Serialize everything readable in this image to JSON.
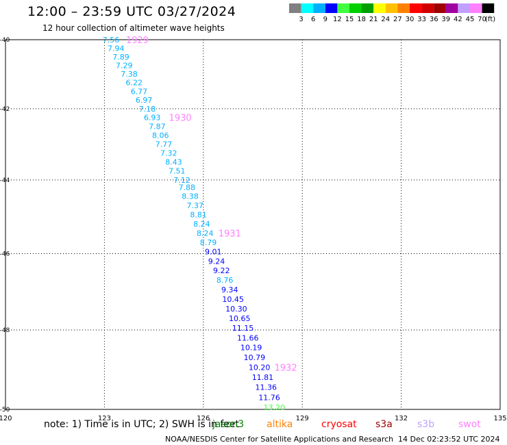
{
  "header": {
    "title": "12:00 – 23:59 UTC 03/27/2024",
    "subtitle": "12 hour collection of altimeter wave heights"
  },
  "legend": {
    "unit": "(ft)",
    "colors": [
      "#808080",
      "#00ffff",
      "#00b0ff",
      "#0000ff",
      "#40ff40",
      "#00d000",
      "#00a000",
      "#ffff00",
      "#ffc000",
      "#ff8000",
      "#ff0000",
      "#d00000",
      "#a00000",
      "#a000a0",
      "#c0a0ff",
      "#ff80ff",
      "#000000"
    ],
    "labels": [
      "3",
      "6",
      "9",
      "12",
      "15",
      "18",
      "21",
      "24",
      "27",
      "30",
      "33",
      "36",
      "39",
      "42",
      "45",
      "70"
    ]
  },
  "map": {
    "lat_ticks": [
      "-40",
      "-42",
      "-44",
      "-46",
      "-48",
      "-50"
    ],
    "lon_ticks": [
      "120",
      "123",
      "126",
      "129",
      "132",
      "135"
    ],
    "track": {
      "points": [
        {
          "lat": -40.0,
          "lon": 123.2,
          "swh": "7.56"
        },
        {
          "lat": -40.25,
          "lon": 123.35,
          "swh": "7.94"
        },
        {
          "lat": -40.5,
          "lon": 123.5,
          "swh": "7.89"
        },
        {
          "lat": -40.75,
          "lon": 123.6,
          "swh": "7.29"
        },
        {
          "lat": -41.0,
          "lon": 123.75,
          "swh": "7.38"
        },
        {
          "lat": -41.25,
          "lon": 123.9,
          "swh": "6.22"
        },
        {
          "lat": -41.5,
          "lon": 124.05,
          "swh": "6.77"
        },
        {
          "lat": -41.75,
          "lon": 124.2,
          "swh": "6.97"
        },
        {
          "lat": -42.0,
          "lon": 124.3,
          "swh": "7.18"
        },
        {
          "lat": -42.25,
          "lon": 124.45,
          "swh": "6.93"
        },
        {
          "lat": -42.5,
          "lon": 124.6,
          "swh": "7.87"
        },
        {
          "lat": -42.75,
          "lon": 124.7,
          "swh": "8.06"
        },
        {
          "lat": -43.0,
          "lon": 124.8,
          "swh": "7.77"
        },
        {
          "lat": -43.25,
          "lon": 124.95,
          "swh": "7.32"
        },
        {
          "lat": -43.5,
          "lon": 125.1,
          "swh": "8.43"
        },
        {
          "lat": -43.75,
          "lon": 125.2,
          "swh": "7.51"
        },
        {
          "lat": -44.0,
          "lon": 125.35,
          "swh": "7.12"
        },
        {
          "lat": -44.2,
          "lon": 125.5,
          "swh": "7.88"
        },
        {
          "lat": -44.45,
          "lon": 125.6,
          "swh": "8.38"
        },
        {
          "lat": -44.7,
          "lon": 125.75,
          "swh": "7.37"
        },
        {
          "lat": -44.95,
          "lon": 125.85,
          "swh": "8.81"
        },
        {
          "lat": -45.2,
          "lon": 125.95,
          "swh": "8.24"
        },
        {
          "lat": -45.45,
          "lon": 126.05,
          "swh": "8.24"
        },
        {
          "lat": -45.7,
          "lon": 126.15,
          "swh": "8.79"
        },
        {
          "lat": -45.95,
          "lon": 126.3,
          "swh": "9.01"
        },
        {
          "lat": -46.2,
          "lon": 126.4,
          "swh": "9.24"
        },
        {
          "lat": -46.45,
          "lon": 126.55,
          "swh": "9.22"
        },
        {
          "lat": -46.7,
          "lon": 126.65,
          "swh": "8.76"
        },
        {
          "lat": -46.95,
          "lon": 126.8,
          "swh": "9.34"
        },
        {
          "lat": -47.2,
          "lon": 126.9,
          "swh": "10.45"
        },
        {
          "lat": -47.45,
          "lon": 127.0,
          "swh": "10.30"
        },
        {
          "lat": -47.7,
          "lon": 127.1,
          "swh": "10.65"
        },
        {
          "lat": -47.95,
          "lon": 127.2,
          "swh": "11.15"
        },
        {
          "lat": -48.2,
          "lon": 127.35,
          "swh": "11.66"
        },
        {
          "lat": -48.45,
          "lon": 127.45,
          "swh": "10.19"
        },
        {
          "lat": -48.7,
          "lon": 127.55,
          "swh": "10.79"
        },
        {
          "lat": -48.95,
          "lon": 127.7,
          "swh": "10.20"
        },
        {
          "lat": -49.2,
          "lon": 127.8,
          "swh": "11.81"
        },
        {
          "lat": -49.45,
          "lon": 127.9,
          "swh": "11.36"
        },
        {
          "lat": -49.7,
          "lon": 128.0,
          "swh": "11.76"
        },
        {
          "lat": -49.95,
          "lon": 128.15,
          "swh": "13.20"
        }
      ],
      "times": [
        {
          "lat": -40.0,
          "lon": 124.0,
          "label": "1929"
        },
        {
          "lat": -42.25,
          "lon": 125.3,
          "label": "1930"
        },
        {
          "lat": -45.45,
          "lon": 126.8,
          "label": "1931"
        },
        {
          "lat": -48.95,
          "lon": 128.5,
          "label": "1932"
        }
      ]
    }
  },
  "footer": {
    "note": "note:  1) Time is in UTC;  2) SWH is in feet",
    "missions": [
      {
        "name": "jason3",
        "color": "#008000"
      },
      {
        "name": "altika",
        "color": "#ff8000"
      },
      {
        "name": "cryosat",
        "color": "#ff0000"
      },
      {
        "name": "s3a",
        "color": "#a00000"
      },
      {
        "name": "s3b",
        "color": "#c0a0ff"
      },
      {
        "name": "swot",
        "color": "#ff80ff"
      }
    ],
    "credit": "NOAA/NESDIS Center for Satellite Applications and Research",
    "datestamp": "14 Dec 02:23:52 UTC 2024"
  }
}
